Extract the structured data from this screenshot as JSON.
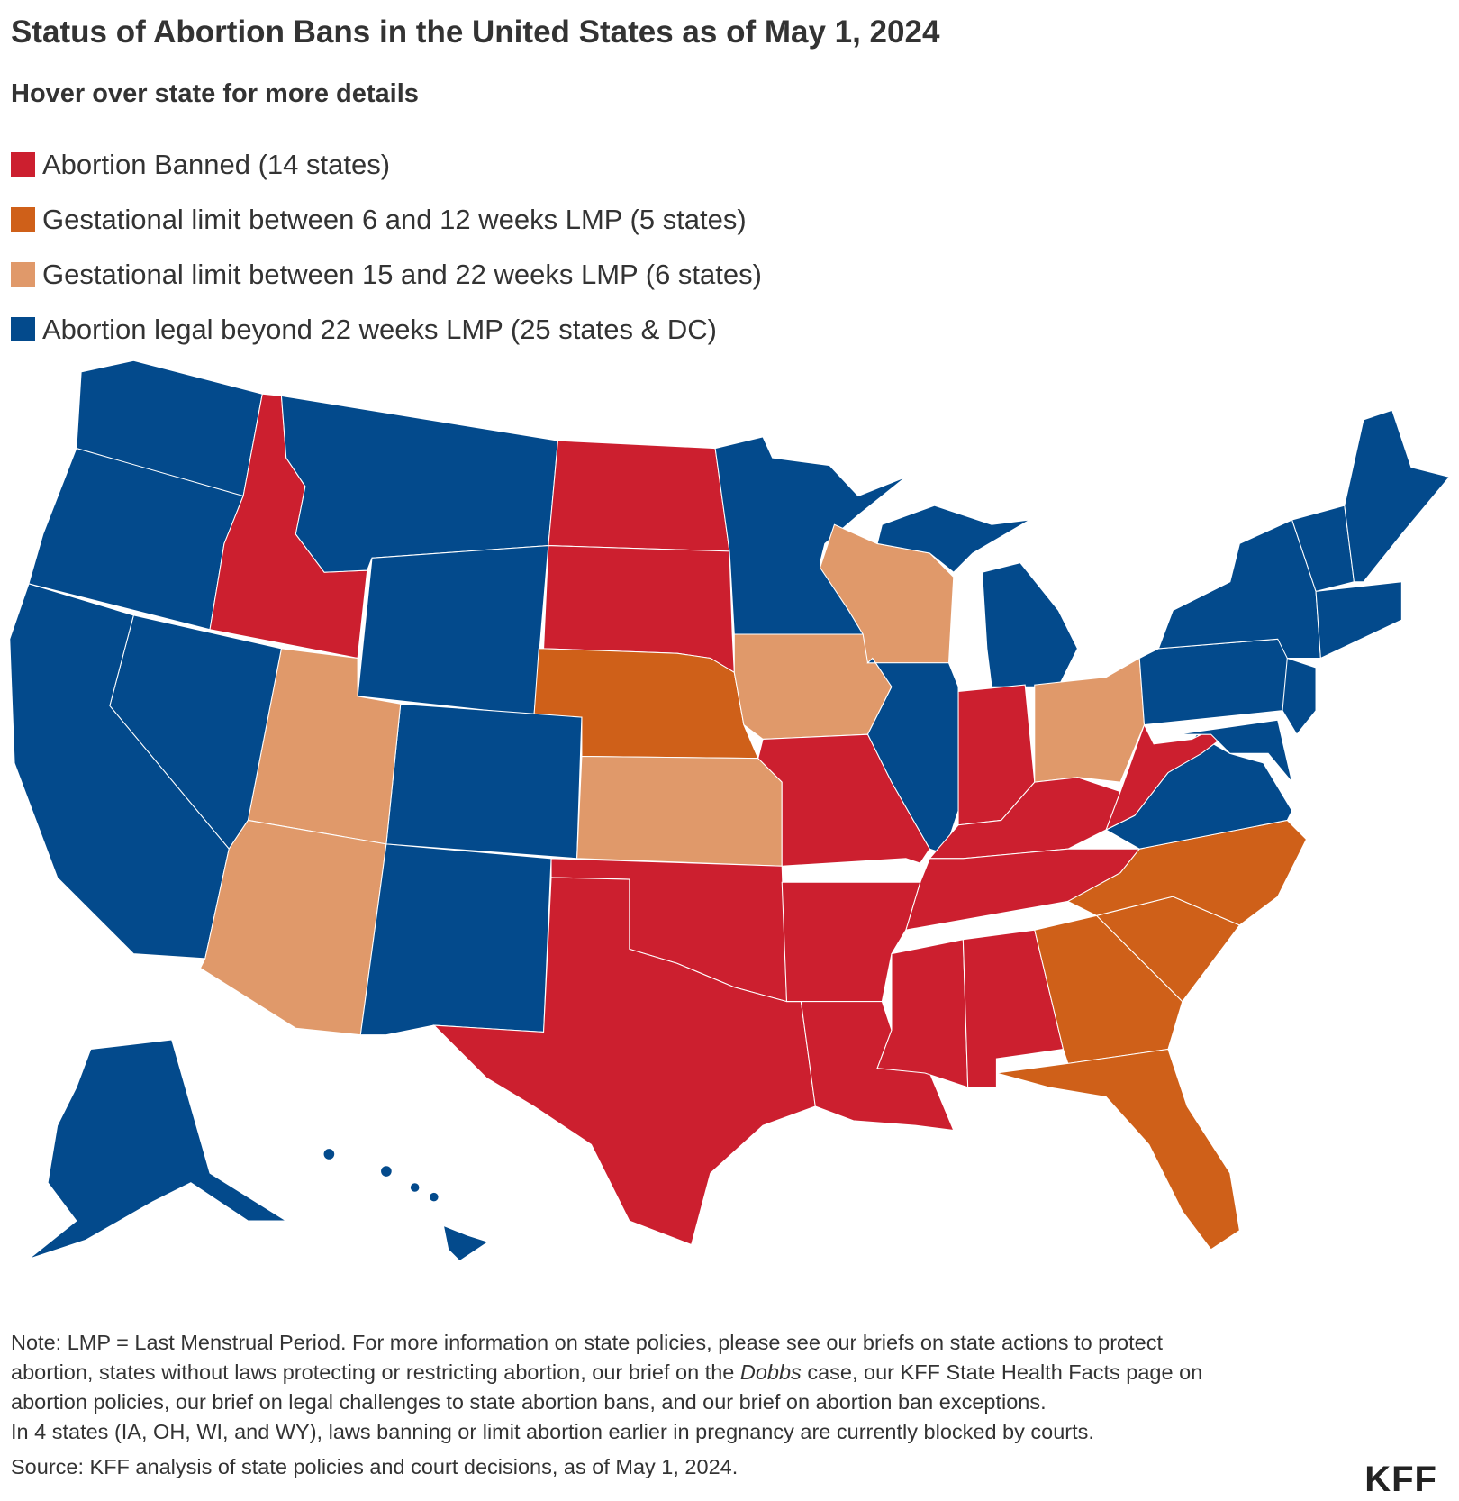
{
  "title": "Status of Abortion Bans in the United States as of May 1, 2024",
  "subtitle": "Hover over state for more details",
  "legend": [
    {
      "label": "Abortion Banned (14 states)",
      "color": "#cc1f2f"
    },
    {
      "label": "Gestational limit between 6 and 12 weeks LMP (5 states)",
      "color": "#cf6019"
    },
    {
      "label": "Gestational limit between 15 and 22 weeks LMP (6 states)",
      "color": "#e0996a"
    },
    {
      "label": "Abortion legal beyond 22 weeks LMP (25 states & DC)",
      "color": "#034a8c"
    }
  ],
  "note": {
    "line1": "Note: LMP = Last Menstrual Period. For more information on state policies, please see our briefs on state actions to protect",
    "line2_before": "abortion, states without laws protecting or restricting abortion, our brief on the ",
    "line2_italic": "Dobbs",
    "line2_after": " case, our KFF State Health Facts page on",
    "line3": "abortion policies, our brief on legal challenges to state abortion bans, and our brief on abortion ban exceptions.",
    "line4": "In 4 states (IA, OH, WI, and WY), laws banning or limit abortion earlier in pregnancy are currently blocked by courts."
  },
  "source": "Source: KFF analysis of state policies and court decisions, as of May 1, 2024.",
  "logo": "KFF"
}
